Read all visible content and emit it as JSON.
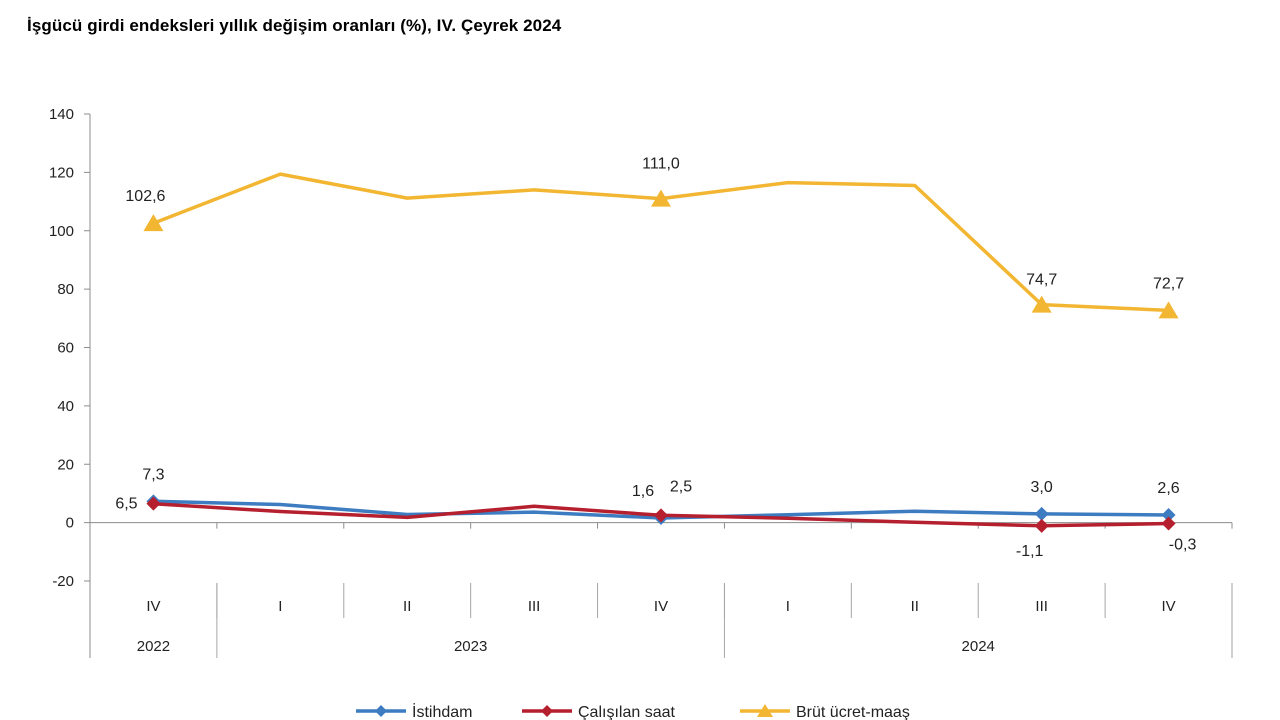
{
  "title": "İşgücü girdi endeksleri yıllık değişim oranları (%), IV. Çeyrek 2024",
  "chart_data": {
    "type": "line",
    "title": "İşgücü girdi endeksleri yıllık değişim oranları (%), IV. Çeyrek 2024",
    "quarters": [
      "IV",
      "I",
      "II",
      "III",
      "IV",
      "I",
      "II",
      "III",
      "IV"
    ],
    "years": [
      {
        "label": "2022",
        "span": 1
      },
      {
        "label": "2023",
        "span": 4
      },
      {
        "label": "2024",
        "span": 4
      }
    ],
    "y_ticks": [
      "140",
      "120",
      "100",
      "80",
      "60",
      "40",
      "20",
      "0",
      "-20"
    ],
    "ylim": [
      -20,
      140
    ],
    "grid": false,
    "legend_position": "bottom",
    "series": [
      {
        "name": "İstihdam",
        "color": "#3d7cc0",
        "values": [
          7.3,
          6.2,
          2.8,
          3.6,
          1.6,
          2.7,
          3.9,
          3.0,
          2.6
        ],
        "markers": [
          0,
          4,
          7,
          8
        ],
        "labels": [
          {
            "i": 0,
            "text": "7,3"
          },
          {
            "i": 4,
            "text": "1,6"
          },
          {
            "i": 7,
            "text": "3,0"
          },
          {
            "i": 8,
            "text": "2,6"
          }
        ]
      },
      {
        "name": "Çalışılan saat",
        "color": "#b51f2e",
        "values": [
          6.5,
          3.8,
          1.8,
          5.6,
          2.5,
          1.5,
          0.1,
          -1.1,
          -0.3
        ],
        "markers": [
          0,
          4,
          7,
          8
        ],
        "labels": [
          {
            "i": 0,
            "text": "6,5"
          },
          {
            "i": 4,
            "text": "2,5"
          },
          {
            "i": 7,
            "text": "-1,1"
          },
          {
            "i": 8,
            "text": "-0,3"
          }
        ]
      },
      {
        "name": "Brüt ücret-maaş",
        "color": "#f2b632",
        "values": [
          102.6,
          119.4,
          111.2,
          114.0,
          111.0,
          116.5,
          115.5,
          74.7,
          72.7
        ],
        "markers": [
          0,
          4,
          7,
          8
        ],
        "labels": [
          {
            "i": 0,
            "text": "102,6"
          },
          {
            "i": 4,
            "text": "111,0"
          },
          {
            "i": 7,
            "text": "74,7"
          },
          {
            "i": 8,
            "text": "72,7"
          }
        ]
      }
    ]
  }
}
